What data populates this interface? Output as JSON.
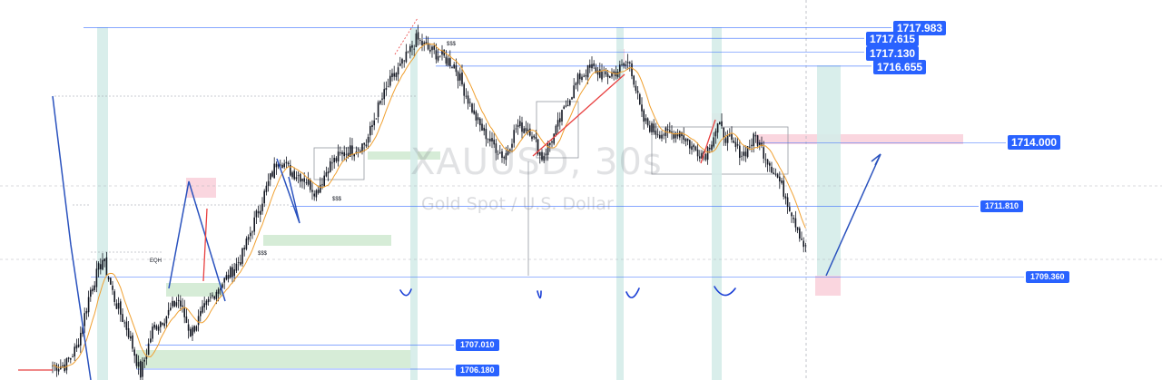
{
  "watermark": {
    "title": "XAUUSD, 30s",
    "subtitle": "Gold Spot / U.S. Dollar"
  },
  "price_labels": [
    {
      "text": "1717.983",
      "size": "big"
    },
    {
      "text": "1717.615",
      "size": "big"
    },
    {
      "text": "1717.130",
      "size": "big"
    },
    {
      "text": "1716.655",
      "size": "big"
    },
    {
      "text": "1714.000",
      "size": "big"
    },
    {
      "text": "1711.810",
      "size": "small"
    },
    {
      "text": "1709.360",
      "size": "small"
    },
    {
      "text": "1707.010",
      "size": "small"
    },
    {
      "text": "1706.180",
      "size": "small"
    }
  ],
  "annotations": [
    "EQH",
    "$$$",
    "$$$",
    "$$$"
  ],
  "colors": {
    "candle": "#131722",
    "moving_average": "#f0a030",
    "trend_lines": "#2a52be",
    "red_line": "#e84040",
    "horizontal_lines": "#2962ff",
    "demand_zone": "#c8e6c9",
    "supply_zone": "#f8c8d4",
    "vertical_highlight": "#d5ece9"
  },
  "chart_data": {
    "type": "candlestick",
    "symbol": "XAUUSD",
    "interval": "30s",
    "description": "Gold Spot / U.S. Dollar",
    "ylim": [
      1705.9,
      1718.9
    ],
    "close_path": [
      1706.3,
      1706.3,
      1707.0,
      1708.9,
      1710.0,
      1708.5,
      1707.5,
      1706.0,
      1707.6,
      1708.0,
      1708.6,
      1707.4,
      1708.2,
      1708.9,
      1709.4,
      1710.0,
      1711.2,
      1712.4,
      1713.5,
      1713.0,
      1712.8,
      1712.3,
      1713.2,
      1713.6,
      1713.8,
      1714.0,
      1715.3,
      1716.2,
      1716.8,
      1717.6,
      1717.2,
      1717.0,
      1716.7,
      1715.6,
      1714.6,
      1714.0,
      1713.5,
      1714.6,
      1714.5,
      1713.5,
      1714.3,
      1715.4,
      1716.3,
      1716.6,
      1716.3,
      1716.5,
      1716.8,
      1714.8,
      1714.4,
      1714.3,
      1714.4,
      1713.8,
      1713.6,
      1714.6,
      1714.0,
      1713.6,
      1714.2,
      1713.4,
      1712.6,
      1711.5,
      1710.3
    ],
    "key_levels": [
      1717.983,
      1717.615,
      1717.13,
      1716.655,
      1714.0,
      1711.81,
      1709.36,
      1707.01,
      1706.18
    ]
  }
}
